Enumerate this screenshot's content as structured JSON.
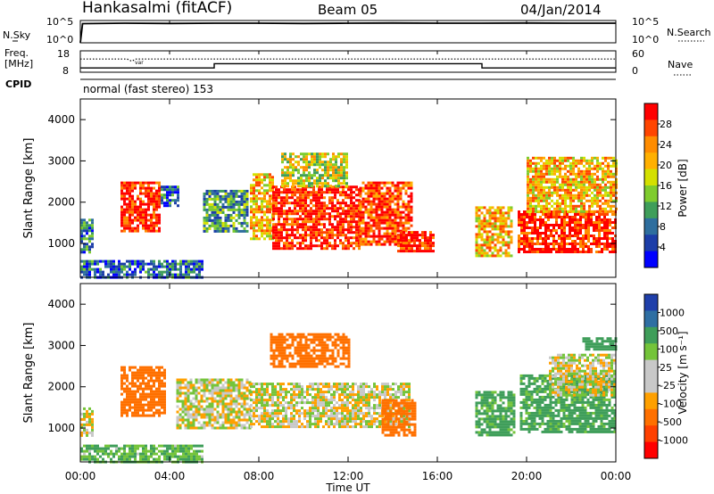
{
  "header": {
    "station": "Hankasalmi (fitACF)",
    "beam": "Beam 05",
    "date": "04/Jan/2014"
  },
  "nsky_panel": {
    "left_label": "N.Sky",
    "right_label": "N.Search",
    "left_ticks": [
      "10^5",
      "10^0"
    ],
    "right_ticks": [
      "10^5",
      "10^0"
    ]
  },
  "freq_panel": {
    "left_label_1": "Freq.",
    "left_label_2": "[MHz]",
    "right_label": "Nave",
    "left_ticks": [
      "18",
      "8"
    ],
    "right_ticks": [
      "60",
      "0"
    ],
    "marker": "var"
  },
  "cpid_panel": {
    "label": "CPID",
    "text": "normal (fast stereo) 153"
  },
  "time_axis": {
    "title": "Time UT",
    "ticks": [
      "00:00",
      "04:00",
      "08:00",
      "12:00",
      "16:00",
      "20:00",
      "00:00"
    ]
  },
  "power_colorbar": {
    "title": "Power [dB]",
    "ticks": [
      "28",
      "24",
      "20",
      "16",
      "12",
      "8",
      "4"
    ],
    "colors": [
      "#ff0000",
      "#ff4500",
      "#ff8c00",
      "#ffb000",
      "#d4e000",
      "#7fcc2e",
      "#3f9e5a",
      "#2e6e9e",
      "#1c3da8",
      "#0000ff"
    ]
  },
  "velocity_colorbar": {
    "title": "Velocity [m s⁻¹]",
    "ticks": [
      "1000",
      "500",
      "100",
      "25",
      "-25",
      "-100",
      "-500",
      "-1000"
    ],
    "colors": [
      "#1f3faa",
      "#2f6fa3",
      "#3f9e5a",
      "#74c43a",
      "#c8c8c8",
      "#c8c8c8",
      "#ffa000",
      "#ff7000",
      "#ff4000",
      "#ff0000"
    ]
  },
  "chart_data": [
    {
      "type": "line",
      "title": "N.Sky / N.Search",
      "x_unit": "hours UT",
      "xlim": [
        0,
        24
      ],
      "series": [
        {
          "name": "N.Sky",
          "x": [
            0,
            0.1,
            2,
            4,
            6,
            8,
            10,
            12,
            14,
            16,
            18,
            20,
            22,
            24
          ],
          "y_log10": [
            0,
            4.3,
            4.4,
            4.35,
            4.4,
            4.4,
            4.35,
            4.4,
            4.45,
            4.4,
            4.4,
            4.45,
            4.4,
            4.4
          ]
        }
      ]
    },
    {
      "type": "line",
      "title": "Freq. [MHz] / Nave",
      "x_unit": "hours UT",
      "xlim": [
        0,
        24
      ],
      "ylim_freq": [
        8,
        18
      ],
      "ylim_nave": [
        0,
        60
      ],
      "series": [
        {
          "name": "Freq.",
          "x": [
            0,
            6,
            6,
            18,
            18,
            24
          ],
          "y": [
            10,
            10,
            12,
            12,
            10,
            10
          ]
        },
        {
          "name": "Nave",
          "x": [
            0,
            2.1,
            2.3,
            2.5,
            24
          ],
          "y": [
            37,
            37,
            31,
            37,
            37
          ]
        }
      ]
    },
    {
      "type": "heatmap",
      "title": "Power [dB]",
      "xlabel": "Time UT",
      "ylabel": "Slant Range [km]",
      "xlim": [
        0,
        24
      ],
      "ylim": [
        180,
        4500
      ],
      "yticks": [
        1000,
        2000,
        3000,
        4000
      ],
      "colorbar": {
        "label": "Power [dB]",
        "range": [
          0,
          30
        ]
      },
      "regions": [
        {
          "t": [
            0,
            0.5
          ],
          "r": [
            800,
            1600
          ],
          "value": 8
        },
        {
          "t": [
            0,
            5.5
          ],
          "r": [
            180,
            600
          ],
          "value": 6
        },
        {
          "t": [
            1.8,
            3.6
          ],
          "r": [
            1300,
            2500
          ],
          "value": 28
        },
        {
          "t": [
            3.6,
            4.4
          ],
          "r": [
            1900,
            2400
          ],
          "value": 6
        },
        {
          "t": [
            5.5,
            7.5
          ],
          "r": [
            1300,
            2300
          ],
          "value": 10
        },
        {
          "t": [
            7.6,
            8.6
          ],
          "r": [
            1100,
            2700
          ],
          "value": 20
        },
        {
          "t": [
            8.6,
            12.5
          ],
          "r": [
            900,
            2400
          ],
          "value": 28
        },
        {
          "t": [
            12.5,
            14.8
          ],
          "r": [
            1000,
            2500
          ],
          "value": 26
        },
        {
          "t": [
            14.2,
            15.8
          ],
          "r": [
            800,
            1300
          ],
          "value": 28
        },
        {
          "t": [
            9,
            12
          ],
          "r": [
            2400,
            3200
          ],
          "value": 16
        },
        {
          "t": [
            17.7,
            19.3
          ],
          "r": [
            700,
            1900
          ],
          "value": 20
        },
        {
          "t": [
            19.6,
            24
          ],
          "r": [
            800,
            1800
          ],
          "value": 28
        },
        {
          "t": [
            20,
            24
          ],
          "r": [
            1800,
            3100
          ],
          "value": 20
        }
      ]
    },
    {
      "type": "heatmap",
      "title": "Velocity [m s-1]",
      "xlabel": "Time UT",
      "ylabel": "Slant Range [km]",
      "xlim": [
        0,
        24
      ],
      "ylim": [
        180,
        4500
      ],
      "yticks": [
        1000,
        2000,
        3000,
        4000
      ],
      "colorbar": {
        "label": "Velocity [m s-1]",
        "range": [
          -1000,
          1000
        ]
      },
      "regions": [
        {
          "t": [
            0,
            5.5
          ],
          "r": [
            180,
            600
          ],
          "value": 100
        },
        {
          "t": [
            0,
            0.5
          ],
          "r": [
            800,
            1500
          ],
          "value": 0
        },
        {
          "t": [
            1.8,
            3.8
          ],
          "r": [
            1300,
            2500
          ],
          "value": -200
        },
        {
          "t": [
            4.3,
            7.6
          ],
          "r": [
            1000,
            2200
          ],
          "value": 0
        },
        {
          "t": [
            7.6,
            14.8
          ],
          "r": [
            1000,
            2100
          ],
          "value": 0
        },
        {
          "t": [
            8.5,
            12
          ],
          "r": [
            2500,
            3300
          ],
          "value": -200
        },
        {
          "t": [
            13.5,
            15
          ],
          "r": [
            800,
            1700
          ],
          "value": -400
        },
        {
          "t": [
            17.7,
            19.5
          ],
          "r": [
            800,
            1900
          ],
          "value": 150
        },
        {
          "t": [
            19.7,
            24
          ],
          "r": [
            900,
            2300
          ],
          "value": 150
        },
        {
          "t": [
            21,
            24
          ],
          "r": [
            1800,
            2800
          ],
          "value": 0
        },
        {
          "t": [
            22.5,
            24
          ],
          "r": [
            2900,
            3200
          ],
          "value": 200
        }
      ]
    }
  ]
}
